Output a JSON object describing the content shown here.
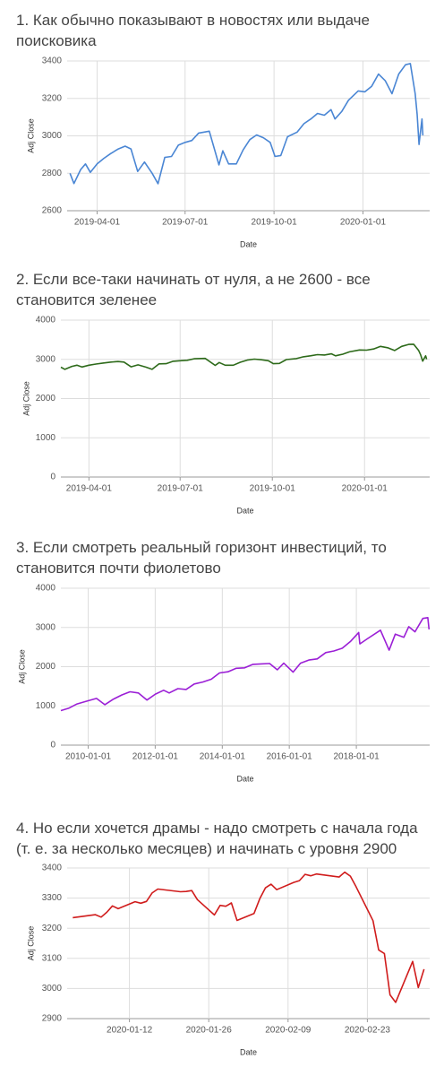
{
  "chart_data": [
    {
      "type": "line",
      "title": "1. Как обычно показывают в новостях или выдаче поисковика",
      "xlabel": "Date",
      "ylabel": "Adj Close",
      "color": "#4a86d4",
      "grid": true,
      "xlim": [
        "2019-03-01",
        "2020-03-10"
      ],
      "xticks": [
        "2019-04-01",
        "2019-07-01",
        "2019-10-01",
        "2020-01-01"
      ],
      "ylim": [
        2600,
        3400
      ],
      "yticks": [
        2600,
        2800,
        3000,
        3200,
        3400
      ],
      "x": [
        "2019-03-04",
        "2019-03-08",
        "2019-03-15",
        "2019-03-20",
        "2019-03-25",
        "2019-04-01",
        "2019-04-08",
        "2019-04-15",
        "2019-04-23",
        "2019-04-30",
        "2019-05-06",
        "2019-05-13",
        "2019-05-20",
        "2019-05-28",
        "2019-06-03",
        "2019-06-10",
        "2019-06-17",
        "2019-06-24",
        "2019-07-01",
        "2019-07-08",
        "2019-07-15",
        "2019-07-26",
        "2019-08-05",
        "2019-08-09",
        "2019-08-15",
        "2019-08-23",
        "2019-08-30",
        "2019-09-06",
        "2019-09-13",
        "2019-09-20",
        "2019-09-27",
        "2019-10-02",
        "2019-10-08",
        "2019-10-15",
        "2019-10-25",
        "2019-11-01",
        "2019-11-08",
        "2019-11-15",
        "2019-11-22",
        "2019-11-29",
        "2019-12-03",
        "2019-12-10",
        "2019-12-17",
        "2019-12-27",
        "2020-01-03",
        "2020-01-10",
        "2020-01-17",
        "2020-01-24",
        "2020-01-31",
        "2020-02-07",
        "2020-02-14",
        "2020-02-19",
        "2020-02-24",
        "2020-02-26",
        "2020-02-28",
        "2020-03-02",
        "2020-03-03"
      ],
      "values": [
        2800,
        2745,
        2820,
        2850,
        2805,
        2850,
        2880,
        2905,
        2930,
        2945,
        2930,
        2810,
        2860,
        2800,
        2744,
        2885,
        2890,
        2950,
        2965,
        2975,
        3015,
        3025,
        2845,
        2920,
        2850,
        2850,
        2925,
        2980,
        3005,
        2990,
        2965,
        2890,
        2895,
        2995,
        3020,
        3065,
        3090,
        3120,
        3110,
        3140,
        3090,
        3130,
        3190,
        3240,
        3235,
        3265,
        3330,
        3295,
        3225,
        3330,
        3380,
        3386,
        3225,
        3115,
        2954,
        3090,
        3003
      ]
    },
    {
      "type": "line",
      "title": "2. Если все-таки начинать от нуля, а не 2600 - все становится зеленее",
      "xlabel": "Date",
      "ylabel": "Adj Close",
      "color": "#2d6a1a",
      "grid": true,
      "xlim": [
        "2019-03-04",
        "2020-03-06"
      ],
      "xticks": [
        "2019-04-01",
        "2019-07-01",
        "2019-10-01",
        "2020-01-01"
      ],
      "ylim": [
        0,
        4000
      ],
      "yticks": [
        0,
        1000,
        2000,
        3000,
        4000
      ],
      "x": [
        "2019-03-04",
        "2019-03-08",
        "2019-03-15",
        "2019-03-20",
        "2019-03-25",
        "2019-04-01",
        "2019-04-08",
        "2019-04-15",
        "2019-04-23",
        "2019-04-30",
        "2019-05-06",
        "2019-05-13",
        "2019-05-20",
        "2019-05-28",
        "2019-06-03",
        "2019-06-10",
        "2019-06-17",
        "2019-06-24",
        "2019-07-01",
        "2019-07-08",
        "2019-07-15",
        "2019-07-26",
        "2019-08-05",
        "2019-08-09",
        "2019-08-15",
        "2019-08-23",
        "2019-08-30",
        "2019-09-06",
        "2019-09-13",
        "2019-09-20",
        "2019-09-27",
        "2019-10-02",
        "2019-10-08",
        "2019-10-15",
        "2019-10-25",
        "2019-11-01",
        "2019-11-08",
        "2019-11-15",
        "2019-11-22",
        "2019-11-29",
        "2019-12-03",
        "2019-12-10",
        "2019-12-17",
        "2019-12-27",
        "2020-01-03",
        "2020-01-10",
        "2020-01-17",
        "2020-01-24",
        "2020-01-31",
        "2020-02-07",
        "2020-02-14",
        "2020-02-19",
        "2020-02-24",
        "2020-02-26",
        "2020-02-28",
        "2020-03-02",
        "2020-03-03"
      ],
      "values": [
        2800,
        2745,
        2820,
        2850,
        2805,
        2850,
        2880,
        2905,
        2930,
        2945,
        2930,
        2810,
        2860,
        2800,
        2744,
        2885,
        2890,
        2950,
        2965,
        2975,
        3015,
        3025,
        2845,
        2920,
        2850,
        2850,
        2925,
        2980,
        3005,
        2990,
        2965,
        2890,
        2895,
        2995,
        3020,
        3065,
        3090,
        3120,
        3110,
        3140,
        3090,
        3130,
        3190,
        3240,
        3235,
        3265,
        3330,
        3295,
        3225,
        3330,
        3380,
        3386,
        3225,
        3115,
        2954,
        3090,
        3003
      ]
    },
    {
      "type": "line",
      "title": "3. Если смотреть реальный горизонт инвестиций, то становится почти фиолетово",
      "xlabel": "Date",
      "ylabel": "Adj Close",
      "color": "#9b1fd6",
      "grid": true,
      "xlim": [
        "2009-03-09",
        "2020-03-10"
      ],
      "xticks": [
        "2010-01-01",
        "2012-01-01",
        "2014-01-01",
        "2016-01-01",
        "2018-01-01"
      ],
      "ylim": [
        0,
        4000
      ],
      "yticks": [
        0,
        1000,
        2000,
        3000,
        4000
      ],
      "x": [
        "2009-03-09",
        "2009-06-01",
        "2009-09-01",
        "2009-12-01",
        "2010-04-01",
        "2010-07-01",
        "2010-10-01",
        "2011-01-03",
        "2011-04-01",
        "2011-07-01",
        "2011-10-03",
        "2012-01-03",
        "2012-04-02",
        "2012-06-01",
        "2012-09-04",
        "2012-12-03",
        "2013-03-01",
        "2013-06-03",
        "2013-09-03",
        "2013-12-02",
        "2014-03-03",
        "2014-06-02",
        "2014-09-02",
        "2014-12-01",
        "2015-03-02",
        "2015-06-01",
        "2015-08-24",
        "2015-11-02",
        "2016-02-11",
        "2016-05-02",
        "2016-08-01",
        "2016-11-01",
        "2017-02-01",
        "2017-05-01",
        "2017-08-01",
        "2017-11-01",
        "2018-01-26",
        "2018-02-08",
        "2018-05-01",
        "2018-09-20",
        "2018-12-24",
        "2019-03-01",
        "2019-06-03",
        "2019-07-26",
        "2019-10-02",
        "2019-12-27",
        "2020-02-19",
        "2020-03-03"
      ],
      "values": [
        880,
        940,
        1050,
        1110,
        1190,
        1030,
        1170,
        1280,
        1360,
        1330,
        1150,
        1300,
        1400,
        1330,
        1440,
        1420,
        1560,
        1610,
        1680,
        1840,
        1870,
        1960,
        1970,
        2060,
        2070,
        2080,
        1920,
        2090,
        1860,
        2090,
        2170,
        2200,
        2360,
        2400,
        2470,
        2650,
        2870,
        2580,
        2710,
        2930,
        2420,
        2830,
        2750,
        3020,
        2890,
        3230,
        3250,
        2950
      ]
    },
    {
      "type": "line",
      "title": "4. Но если хочется драмы - надо смотреть с начала года (т. е. за несколько месяцев) и начинать с уровня  2900",
      "xlabel": "Date",
      "ylabel": "Adj Close",
      "color": "#d01c1c",
      "grid": true,
      "xlim": [
        "2020-01-01",
        "2020-03-05"
      ],
      "xticks": [
        "2020-01-12",
        "2020-01-26",
        "2020-02-09",
        "2020-02-23"
      ],
      "ylim": [
        2900,
        3400
      ],
      "yticks": [
        2900,
        3000,
        3100,
        3200,
        3300,
        3400
      ],
      "x": [
        "2020-01-02",
        "2020-01-06",
        "2020-01-07",
        "2020-01-08",
        "2020-01-09",
        "2020-01-10",
        "2020-01-13",
        "2020-01-14",
        "2020-01-15",
        "2020-01-16",
        "2020-01-17",
        "2020-01-21",
        "2020-01-22",
        "2020-01-23",
        "2020-01-24",
        "2020-01-27",
        "2020-01-28",
        "2020-01-29",
        "2020-01-30",
        "2020-01-31",
        "2020-02-03",
        "2020-02-04",
        "2020-02-05",
        "2020-02-06",
        "2020-02-07",
        "2020-02-10",
        "2020-02-11",
        "2020-02-12",
        "2020-02-13",
        "2020-02-14",
        "2020-02-18",
        "2020-02-19",
        "2020-02-20",
        "2020-02-21",
        "2020-02-24",
        "2020-02-25",
        "2020-02-26",
        "2020-02-27",
        "2020-02-28",
        "2020-03-02",
        "2020-03-03",
        "2020-03-04"
      ],
      "values": [
        3235,
        3245,
        3237,
        3253,
        3274,
        3265,
        3288,
        3283,
        3289,
        3317,
        3330,
        3321,
        3322,
        3325,
        3295,
        3244,
        3276,
        3273,
        3284,
        3226,
        3249,
        3298,
        3334,
        3346,
        3328,
        3352,
        3358,
        3379,
        3374,
        3380,
        3370,
        3386,
        3373,
        3338,
        3225,
        3128,
        3116,
        2979,
        2954,
        3090,
        3003,
        3064
      ]
    }
  ]
}
